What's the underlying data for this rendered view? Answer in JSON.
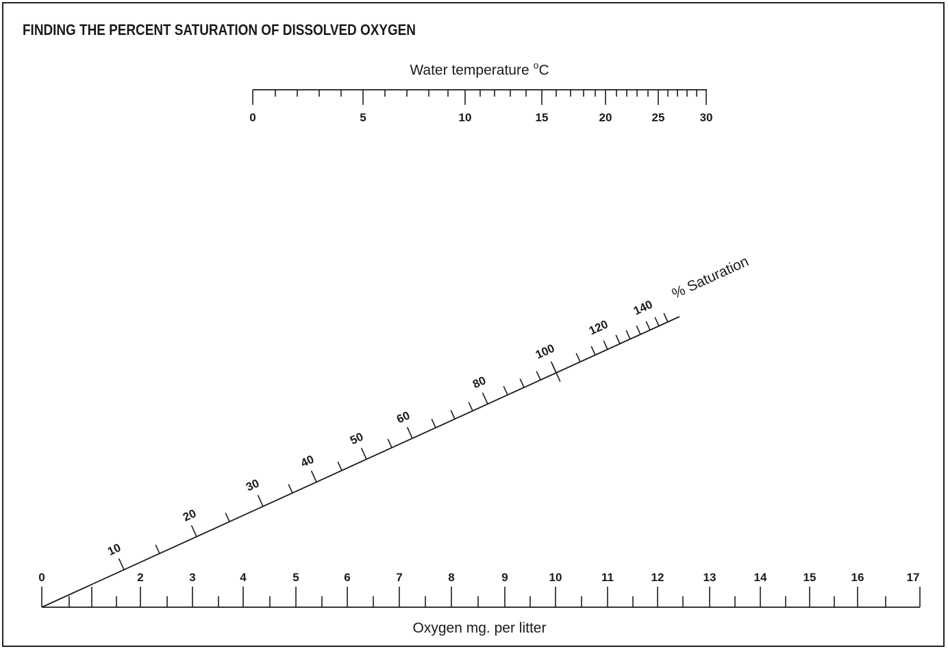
{
  "title": "FINDING THE PERCENT SATURATION OF DISSOLVED OXYGEN",
  "temperature_scale": {
    "label_text": "Water temperature",
    "label_unit_sup": "o",
    "label_unit": "C",
    "labels": [
      "0",
      "5",
      "10",
      "15",
      "20",
      "25",
      "30"
    ]
  },
  "saturation_scale": {
    "label": "% Saturation",
    "labels": [
      "10",
      "20",
      "30",
      "40",
      "50",
      "60",
      "80",
      "100",
      "120",
      "140"
    ]
  },
  "oxygen_scale": {
    "label": "Oxygen mg. per litter",
    "labels": [
      "0",
      "2",
      "3",
      "4",
      "5",
      "6",
      "7",
      "8",
      "9",
      "10",
      "11",
      "12",
      "13",
      "14",
      "15",
      "16",
      "17"
    ]
  },
  "colors": {
    "ink": "#1a1a1a",
    "frame": "#222222",
    "background": "#ffffff"
  }
}
